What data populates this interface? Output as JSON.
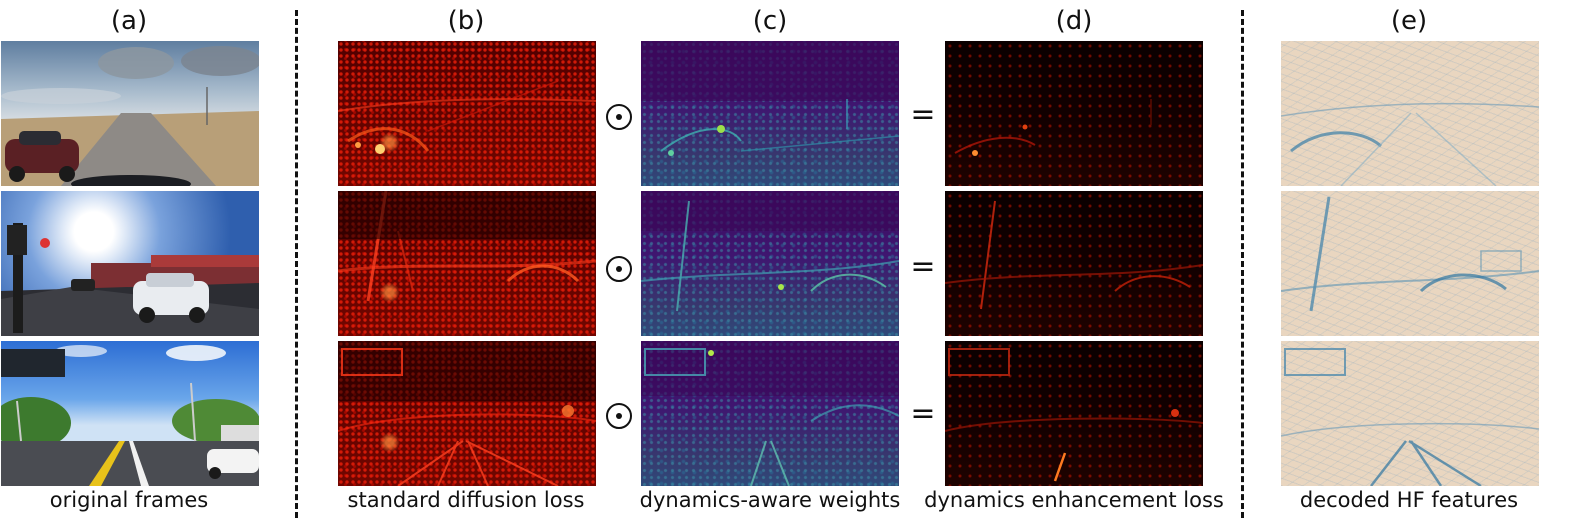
{
  "panel_labels": [
    "(a)",
    "(b)",
    "(c)",
    "(d)",
    "(e)"
  ],
  "captions": [
    "original frames",
    "standard diffusion loss",
    "dynamics-aware weights",
    "dynamics enhancement loss",
    "decoded HF features"
  ],
  "operators": {
    "multiply": "⊙",
    "equals": "="
  }
}
